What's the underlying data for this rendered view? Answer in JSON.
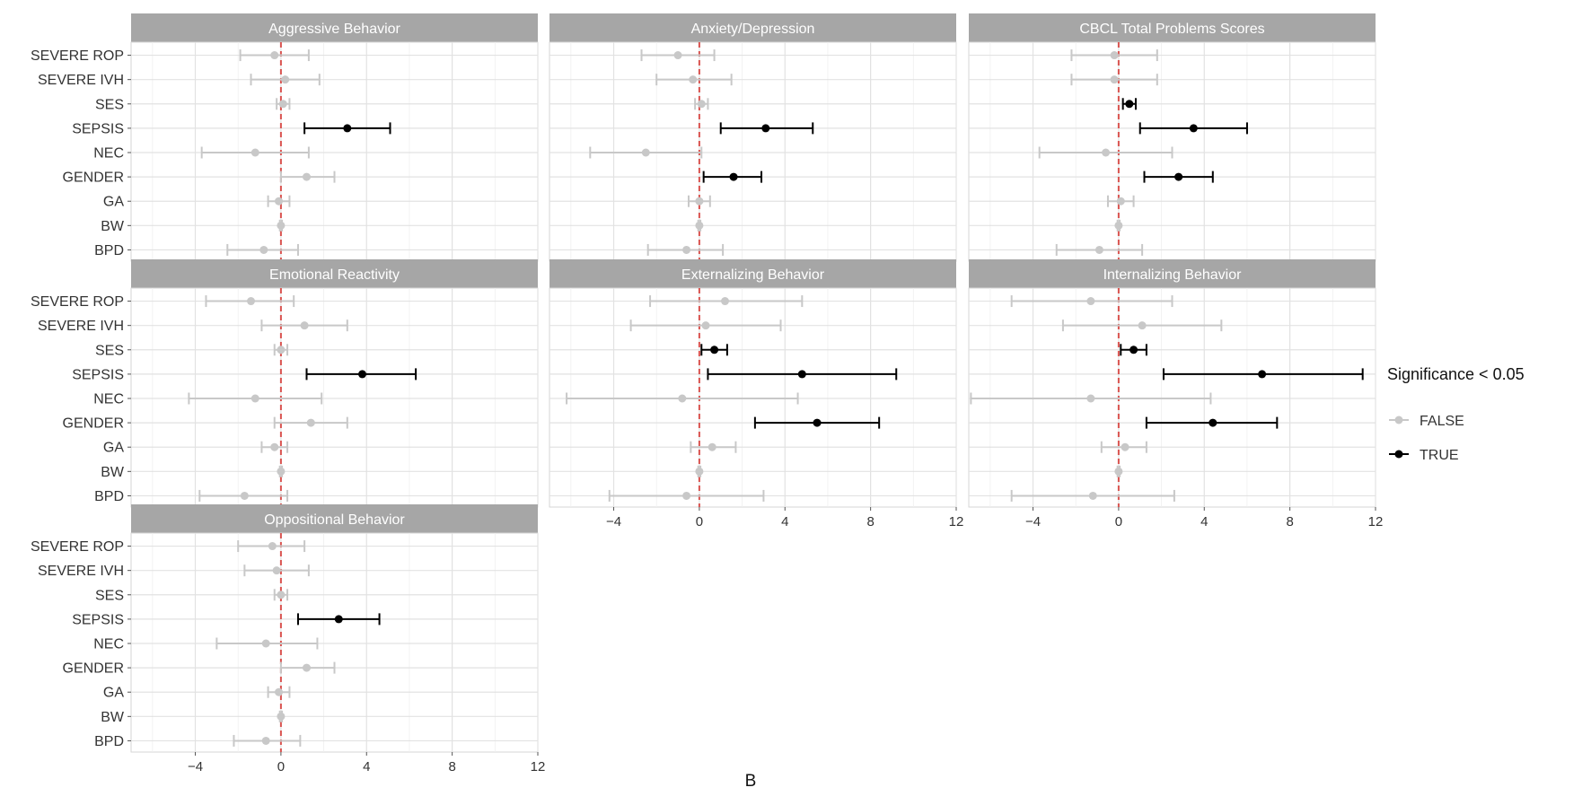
{
  "chart_data": {
    "type": "forest",
    "xlim": [
      -7,
      12
    ],
    "x_ticks": [
      -4,
      0,
      4,
      8,
      12
    ],
    "reference_line": 0,
    "grid": true,
    "categories": [
      "SEVERE ROP",
      "SEVERE IVH",
      "SES",
      "SEPSIS",
      "NEC",
      "GENDER",
      "GA",
      "BW",
      "BPD"
    ],
    "legend": {
      "title": "Significance < 0.05",
      "entries": [
        {
          "label": "FALSE",
          "color": "#c8c8c8"
        },
        {
          "label": "TRUE",
          "color": "#000000"
        }
      ],
      "position": "right"
    },
    "colors": {
      "significant": "#000000",
      "not_significant": "#c8c8c8",
      "reference": "#d9534f",
      "strip": "#a6a6a6"
    },
    "caption": "B",
    "panels": [
      {
        "title": "Aggressive Behavior",
        "rows": [
          {
            "category": "SEVERE ROP",
            "est": -0.3,
            "lo": -1.9,
            "hi": 1.3,
            "sig": false
          },
          {
            "category": "SEVERE IVH",
            "est": 0.2,
            "lo": -1.4,
            "hi": 1.8,
            "sig": false
          },
          {
            "category": "SES",
            "est": 0.1,
            "lo": -0.2,
            "hi": 0.4,
            "sig": false
          },
          {
            "category": "SEPSIS",
            "est": 3.1,
            "lo": 1.1,
            "hi": 5.1,
            "sig": true
          },
          {
            "category": "NEC",
            "est": -1.2,
            "lo": -3.7,
            "hi": 1.3,
            "sig": false
          },
          {
            "category": "GENDER",
            "est": 1.2,
            "lo": 0.0,
            "hi": 2.5,
            "sig": false
          },
          {
            "category": "GA",
            "est": -0.1,
            "lo": -0.6,
            "hi": 0.4,
            "sig": false
          },
          {
            "category": "BW",
            "est": 0.0,
            "lo": -0.05,
            "hi": 0.05,
            "sig": false
          },
          {
            "category": "BPD",
            "est": -0.8,
            "lo": -2.5,
            "hi": 0.8,
            "sig": false
          }
        ]
      },
      {
        "title": "Anxiety/Depression",
        "rows": [
          {
            "category": "SEVERE ROP",
            "est": -1.0,
            "lo": -2.7,
            "hi": 0.7,
            "sig": false
          },
          {
            "category": "SEVERE IVH",
            "est": -0.3,
            "lo": -2.0,
            "hi": 1.5,
            "sig": false
          },
          {
            "category": "SES",
            "est": 0.1,
            "lo": -0.2,
            "hi": 0.4,
            "sig": false
          },
          {
            "category": "SEPSIS",
            "est": 3.1,
            "lo": 1.0,
            "hi": 5.3,
            "sig": true
          },
          {
            "category": "NEC",
            "est": -2.5,
            "lo": -5.1,
            "hi": 0.1,
            "sig": false
          },
          {
            "category": "GENDER",
            "est": 1.6,
            "lo": 0.2,
            "hi": 2.9,
            "sig": true
          },
          {
            "category": "GA",
            "est": 0.0,
            "lo": -0.5,
            "hi": 0.5,
            "sig": false
          },
          {
            "category": "BW",
            "est": 0.0,
            "lo": -0.05,
            "hi": 0.05,
            "sig": false
          },
          {
            "category": "BPD",
            "est": -0.6,
            "lo": -2.4,
            "hi": 1.1,
            "sig": false
          }
        ]
      },
      {
        "title": "CBCL Total Problems Scores",
        "rows": [
          {
            "category": "SEVERE ROP",
            "est": -0.2,
            "lo": -2.2,
            "hi": 1.8,
            "sig": false
          },
          {
            "category": "SEVERE IVH",
            "est": -0.2,
            "lo": -2.2,
            "hi": 1.8,
            "sig": false
          },
          {
            "category": "SES",
            "est": 0.5,
            "lo": 0.2,
            "hi": 0.8,
            "sig": true
          },
          {
            "category": "SEPSIS",
            "est": 3.5,
            "lo": 1.0,
            "hi": 6.0,
            "sig": true
          },
          {
            "category": "NEC",
            "est": -0.6,
            "lo": -3.7,
            "hi": 2.5,
            "sig": false
          },
          {
            "category": "GENDER",
            "est": 2.8,
            "lo": 1.2,
            "hi": 4.4,
            "sig": true
          },
          {
            "category": "GA",
            "est": 0.1,
            "lo": -0.5,
            "hi": 0.7,
            "sig": false
          },
          {
            "category": "BW",
            "est": 0.0,
            "lo": -0.05,
            "hi": 0.05,
            "sig": false
          },
          {
            "category": "BPD",
            "est": -0.9,
            "lo": -2.9,
            "hi": 1.1,
            "sig": false
          }
        ]
      },
      {
        "title": "Emotional Reactivity",
        "rows": [
          {
            "category": "SEVERE ROP",
            "est": -1.4,
            "lo": -3.5,
            "hi": 0.6,
            "sig": false
          },
          {
            "category": "SEVERE IVH",
            "est": 1.1,
            "lo": -0.9,
            "hi": 3.1,
            "sig": false
          },
          {
            "category": "SES",
            "est": 0.0,
            "lo": -0.3,
            "hi": 0.3,
            "sig": false
          },
          {
            "category": "SEPSIS",
            "est": 3.8,
            "lo": 1.2,
            "hi": 6.3,
            "sig": true
          },
          {
            "category": "NEC",
            "est": -1.2,
            "lo": -4.3,
            "hi": 1.9,
            "sig": false
          },
          {
            "category": "GENDER",
            "est": 1.4,
            "lo": -0.3,
            "hi": 3.1,
            "sig": false
          },
          {
            "category": "GA",
            "est": -0.3,
            "lo": -0.9,
            "hi": 0.3,
            "sig": false
          },
          {
            "category": "BW",
            "est": 0.0,
            "lo": -0.05,
            "hi": 0.05,
            "sig": false
          },
          {
            "category": "BPD",
            "est": -1.7,
            "lo": -3.8,
            "hi": 0.3,
            "sig": false
          }
        ]
      },
      {
        "title": "Externalizing Behavior",
        "rows": [
          {
            "category": "SEVERE ROP",
            "est": 1.2,
            "lo": -2.3,
            "hi": 4.8,
            "sig": false
          },
          {
            "category": "SEVERE IVH",
            "est": 0.3,
            "lo": -3.2,
            "hi": 3.8,
            "sig": false
          },
          {
            "category": "SES",
            "est": 0.7,
            "lo": 0.1,
            "hi": 1.3,
            "sig": true
          },
          {
            "category": "SEPSIS",
            "est": 4.8,
            "lo": 0.4,
            "hi": 9.2,
            "sig": true
          },
          {
            "category": "NEC",
            "est": -0.8,
            "lo": -6.2,
            "hi": 4.6,
            "sig": false
          },
          {
            "category": "GENDER",
            "est": 5.5,
            "lo": 2.6,
            "hi": 8.4,
            "sig": true
          },
          {
            "category": "GA",
            "est": 0.6,
            "lo": -0.4,
            "hi": 1.7,
            "sig": false
          },
          {
            "category": "BW",
            "est": 0.0,
            "lo": -0.05,
            "hi": 0.05,
            "sig": false
          },
          {
            "category": "BPD",
            "est": -0.6,
            "lo": -4.2,
            "hi": 3.0,
            "sig": false
          }
        ]
      },
      {
        "title": "Internalizing Behavior",
        "rows": [
          {
            "category": "SEVERE ROP",
            "est": -1.3,
            "lo": -5.0,
            "hi": 2.5,
            "sig": false
          },
          {
            "category": "SEVERE IVH",
            "est": 1.1,
            "lo": -2.6,
            "hi": 4.8,
            "sig": false
          },
          {
            "category": "SES",
            "est": 0.7,
            "lo": 0.1,
            "hi": 1.3,
            "sig": true
          },
          {
            "category": "SEPSIS",
            "est": 6.7,
            "lo": 2.1,
            "hi": 11.4,
            "sig": true
          },
          {
            "category": "NEC",
            "est": -1.3,
            "lo": -6.9,
            "hi": 4.3,
            "sig": false
          },
          {
            "category": "GENDER",
            "est": 4.4,
            "lo": 1.3,
            "hi": 7.4,
            "sig": true
          },
          {
            "category": "GA",
            "est": 0.3,
            "lo": -0.8,
            "hi": 1.3,
            "sig": false
          },
          {
            "category": "BW",
            "est": 0.0,
            "lo": -0.05,
            "hi": 0.05,
            "sig": false
          },
          {
            "category": "BPD",
            "est": -1.2,
            "lo": -5.0,
            "hi": 2.6,
            "sig": false
          }
        ]
      },
      {
        "title": "Oppositional Behavior",
        "rows": [
          {
            "category": "SEVERE ROP",
            "est": -0.4,
            "lo": -2.0,
            "hi": 1.1,
            "sig": false
          },
          {
            "category": "SEVERE IVH",
            "est": -0.2,
            "lo": -1.7,
            "hi": 1.3,
            "sig": false
          },
          {
            "category": "SES",
            "est": 0.0,
            "lo": -0.3,
            "hi": 0.3,
            "sig": false
          },
          {
            "category": "SEPSIS",
            "est": 2.7,
            "lo": 0.8,
            "hi": 4.6,
            "sig": true
          },
          {
            "category": "NEC",
            "est": -0.7,
            "lo": -3.0,
            "hi": 1.7,
            "sig": false
          },
          {
            "category": "GENDER",
            "est": 1.2,
            "lo": 0.0,
            "hi": 2.5,
            "sig": false
          },
          {
            "category": "GA",
            "est": -0.1,
            "lo": -0.6,
            "hi": 0.4,
            "sig": false
          },
          {
            "category": "BW",
            "est": 0.0,
            "lo": -0.05,
            "hi": 0.05,
            "sig": false
          },
          {
            "category": "BPD",
            "est": -0.7,
            "lo": -2.2,
            "hi": 0.9,
            "sig": false
          }
        ]
      }
    ]
  }
}
